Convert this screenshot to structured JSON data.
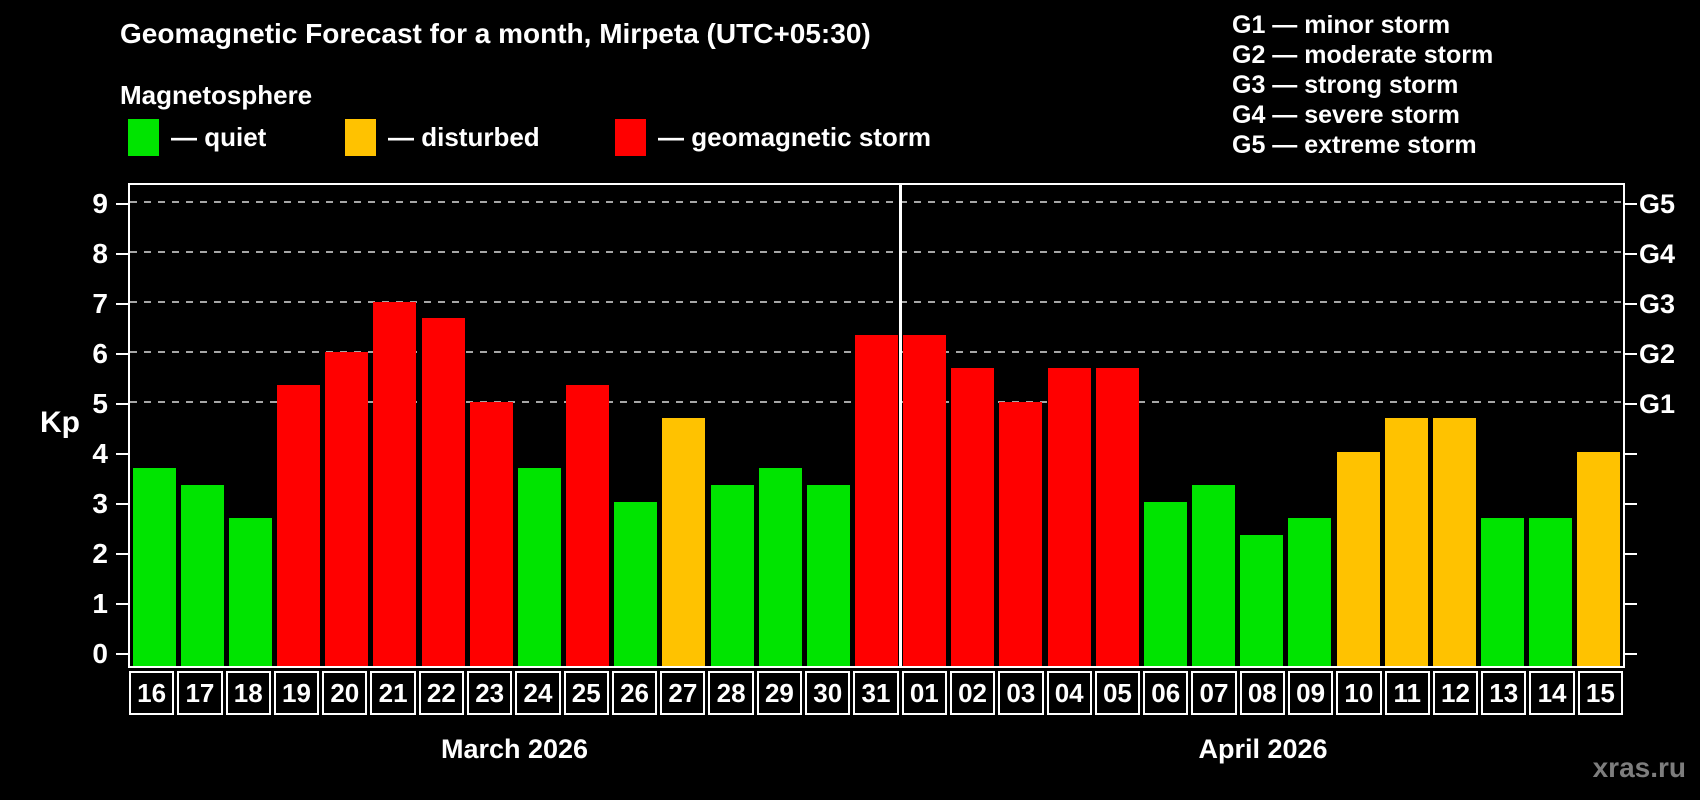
{
  "header": {
    "title": "Geomagnetic Forecast for a month, Mirpeta (UTC+05:30)",
    "subtitle": "Magnetosphere"
  },
  "legend": {
    "items": [
      {
        "key": "quiet",
        "label": "— quiet"
      },
      {
        "key": "disturbed",
        "label": "— disturbed"
      },
      {
        "key": "storm",
        "label": "— geomagnetic storm"
      }
    ]
  },
  "g_legend": {
    "lines": [
      "G1 — minor storm",
      "G2 — moderate storm",
      "G3 — strong storm",
      "G4 — severe storm",
      "G5 — extreme storm"
    ]
  },
  "colors": {
    "quiet": "#00E400",
    "disturbed": "#FFC200",
    "storm": "#FF0000",
    "grid": "#A6A6A6",
    "axis": "#FFFFFF",
    "watermark": "#7D7D7D"
  },
  "axis": {
    "ylabel": "Kp",
    "yticks": [
      0,
      1,
      2,
      3,
      4,
      5,
      6,
      7,
      8,
      9
    ],
    "right_labels": {
      "5": "G1",
      "6": "G2",
      "7": "G3",
      "8": "G4",
      "9": "G5"
    },
    "grid_levels": [
      5,
      6,
      7,
      8,
      9
    ],
    "ylim": [
      -0.33,
      9.37
    ]
  },
  "watermark": "xras.ru",
  "chart_data": {
    "type": "bar",
    "title": "Geomagnetic Forecast for a month, Mirpeta (UTC+05:30)",
    "ylabel": "Kp",
    "legend_position": "top",
    "grid": "dashed horizontal at Kp 5-9",
    "months": [
      {
        "name": "March 2026",
        "days": [
          {
            "day": "16",
            "kp": 3.67,
            "level": "quiet"
          },
          {
            "day": "17",
            "kp": 3.33,
            "level": "quiet"
          },
          {
            "day": "18",
            "kp": 2.67,
            "level": "quiet"
          },
          {
            "day": "19",
            "kp": 5.33,
            "level": "storm"
          },
          {
            "day": "20",
            "kp": 6.0,
            "level": "storm"
          },
          {
            "day": "21",
            "kp": 7.0,
            "level": "storm"
          },
          {
            "day": "22",
            "kp": 6.67,
            "level": "storm"
          },
          {
            "day": "23",
            "kp": 5.0,
            "level": "storm"
          },
          {
            "day": "24",
            "kp": 3.67,
            "level": "quiet"
          },
          {
            "day": "25",
            "kp": 5.33,
            "level": "storm"
          },
          {
            "day": "26",
            "kp": 3.0,
            "level": "quiet"
          },
          {
            "day": "27",
            "kp": 4.67,
            "level": "disturbed"
          },
          {
            "day": "28",
            "kp": 3.33,
            "level": "quiet"
          },
          {
            "day": "29",
            "kp": 3.67,
            "level": "quiet"
          },
          {
            "day": "30",
            "kp": 3.33,
            "level": "quiet"
          },
          {
            "day": "31",
            "kp": 6.33,
            "level": "storm"
          }
        ]
      },
      {
        "name": "April 2026",
        "days": [
          {
            "day": "01",
            "kp": 6.33,
            "level": "storm"
          },
          {
            "day": "02",
            "kp": 5.67,
            "level": "storm"
          },
          {
            "day": "03",
            "kp": 5.0,
            "level": "storm"
          },
          {
            "day": "04",
            "kp": 5.67,
            "level": "storm"
          },
          {
            "day": "05",
            "kp": 5.67,
            "level": "storm"
          },
          {
            "day": "06",
            "kp": 3.0,
            "level": "quiet"
          },
          {
            "day": "07",
            "kp": 3.33,
            "level": "quiet"
          },
          {
            "day": "08",
            "kp": 2.33,
            "level": "quiet"
          },
          {
            "day": "09",
            "kp": 2.67,
            "level": "quiet"
          },
          {
            "day": "10",
            "kp": 4.0,
            "level": "disturbed"
          },
          {
            "day": "11",
            "kp": 4.67,
            "level": "disturbed"
          },
          {
            "day": "12",
            "kp": 4.67,
            "level": "disturbed"
          },
          {
            "day": "13",
            "kp": 2.67,
            "level": "quiet"
          },
          {
            "day": "14",
            "kp": 2.67,
            "level": "quiet"
          },
          {
            "day": "15",
            "kp": 4.0,
            "level": "disturbed"
          }
        ]
      }
    ]
  }
}
